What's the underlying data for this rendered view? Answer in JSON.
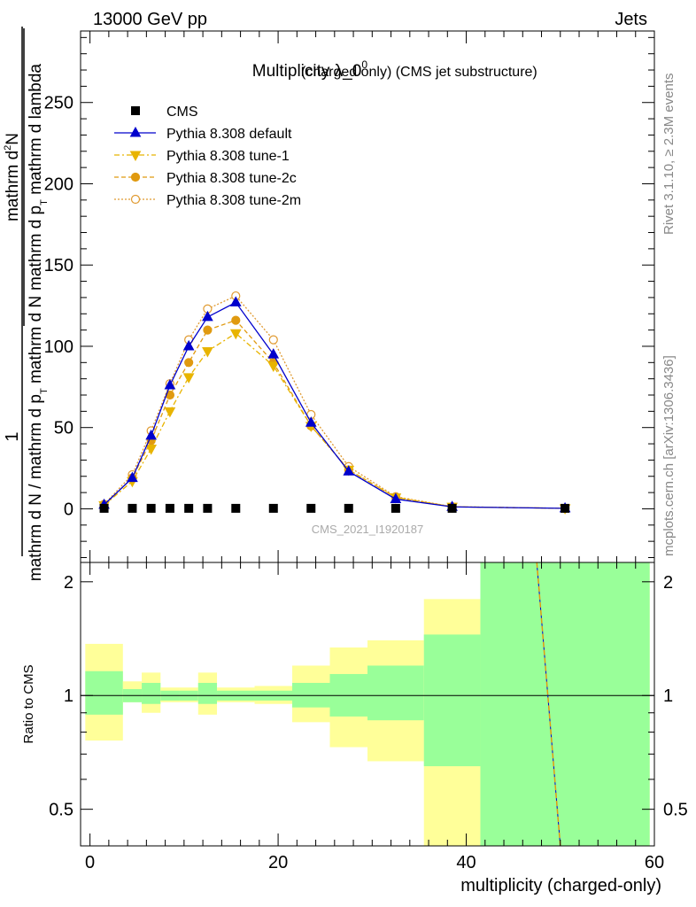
{
  "header": {
    "left": "13000 GeV pp",
    "right": "Jets"
  },
  "side_labels": {
    "rivet": "Rivet 3.1.10, ≥ 2.3M events",
    "mcplots": "mcplots.cern.ch [arXiv:1306.3436]"
  },
  "colors": {
    "cms": "#000000",
    "default": "#0000cc",
    "tune1": "#e8b400",
    "tune2c": "#e09a10",
    "tune2m": "#e09a30",
    "band_inner": "#99ff99",
    "band_outer": "#ffff99"
  },
  "chart_data": [
    {
      "type": "line",
      "title_main": "Multiplicity λ_0",
      "title_sup": "0",
      "title_rest": " (charged only) (CMS jet substructure)",
      "ylabel_prefix": "1",
      "ylabel_frac_num_a": "mathrm d",
      "ylabel_frac_num_sup": "2",
      "ylabel_frac_num_b": "N",
      "ylabel_frac_den": "mathrm d p",
      "ylabel_frac_den_sub": "T",
      "ylabel_frac_den_b": " mathrm d lambda",
      "ylabel_outer_den": "mathrm d N / mathrm d p",
      "ylabel_outer_den_sub": "T",
      "ylabel_outer_den_b": " mathrm d N",
      "watermark": "CMS_2021_I1920187",
      "ylim": [
        -33,
        294
      ],
      "yticks": [
        0,
        50,
        100,
        150,
        200,
        250
      ],
      "yticks_labels": [
        "0",
        "50",
        "100",
        "150",
        "200",
        "250"
      ],
      "legend_position": "top-left",
      "series": [
        {
          "name": "CMS",
          "x": [
            1.5,
            4.5,
            6.5,
            8.5,
            10.5,
            12.5,
            15.5,
            19.5,
            23.5,
            27.5,
            32.5,
            38.5,
            50.5
          ],
          "values": [
            0.3,
            0.3,
            0.3,
            0.3,
            0.3,
            0.3,
            0.3,
            0.3,
            0.3,
            0.3,
            0.3,
            0.3,
            0.3
          ]
        },
        {
          "name": "Pythia 8.308 default",
          "x": [
            1.5,
            4.5,
            6.5,
            8.5,
            10.5,
            12.5,
            15.5,
            19.5,
            23.5,
            27.5,
            32.5,
            38.5,
            50.5
          ],
          "values": [
            2.5,
            19,
            45,
            76,
            100,
            118,
            127,
            95,
            53,
            23,
            6,
            1.2,
            0.3
          ]
        },
        {
          "name": "Pythia 8.308 tune-1",
          "x": [
            1.5,
            4.5,
            6.5,
            8.5,
            10.5,
            12.5,
            15.5,
            19.5,
            23.5,
            27.5,
            32.5,
            38.5,
            50.5
          ],
          "values": [
            2.2,
            17,
            37,
            60,
            81,
            97,
            108,
            88,
            51,
            24,
            7,
            1.3,
            0.3
          ]
        },
        {
          "name": "Pythia 8.308 tune-2c",
          "x": [
            1.5,
            4.5,
            6.5,
            8.5,
            10.5,
            12.5,
            15.5,
            19.5,
            23.5,
            27.5,
            32.5,
            38.5,
            50.5
          ],
          "values": [
            2.4,
            19,
            42,
            70,
            90,
            110,
            116,
            90,
            51,
            24,
            7,
            1.2,
            0.3
          ]
        },
        {
          "name": "Pythia 8.308 tune-2m",
          "x": [
            1.5,
            4.5,
            6.5,
            8.5,
            10.5,
            12.5,
            15.5,
            19.5,
            23.5,
            27.5,
            32.5,
            38.5,
            50.5
          ],
          "values": [
            2.8,
            21,
            48,
            77,
            104,
            123,
            131,
            104,
            58,
            26,
            7.5,
            1.3,
            0.3
          ]
        }
      ]
    },
    {
      "type": "area",
      "ylabel": "Ratio to CMS",
      "xlabel": "multiplicity (charged-only)",
      "xlim": [
        -1,
        60
      ],
      "ylim": [
        0.4,
        2.25
      ],
      "xticks": [
        0,
        20,
        40,
        60
      ],
      "xticks_labels": [
        "0",
        "20",
        "40",
        "60"
      ],
      "yticks": [
        0.5,
        1,
        2
      ],
      "yticks_labels": [
        "0.5",
        "1",
        "2"
      ],
      "bins": [
        {
          "lo": -0.5,
          "hi": 3.5,
          "inner_lo": 0.89,
          "inner_hi": 1.16,
          "outer_lo": 0.76,
          "outer_hi": 1.37
        },
        {
          "lo": 3.5,
          "hi": 5.5,
          "inner_lo": 0.96,
          "inner_hi": 1.04,
          "outer_lo": 0.96,
          "outer_hi": 1.09
        },
        {
          "lo": 5.5,
          "hi": 7.5,
          "inner_lo": 0.95,
          "inner_hi": 1.08,
          "outer_lo": 0.9,
          "outer_hi": 1.15
        },
        {
          "lo": 7.5,
          "hi": 9.5,
          "inner_lo": 0.97,
          "inner_hi": 1.03,
          "outer_lo": 0.96,
          "outer_hi": 1.05
        },
        {
          "lo": 9.5,
          "hi": 11.5,
          "inner_lo": 0.97,
          "inner_hi": 1.03,
          "outer_lo": 0.96,
          "outer_hi": 1.05
        },
        {
          "lo": 11.5,
          "hi": 13.5,
          "inner_lo": 0.95,
          "inner_hi": 1.08,
          "outer_lo": 0.89,
          "outer_hi": 1.15
        },
        {
          "lo": 13.5,
          "hi": 17.5,
          "inner_lo": 0.97,
          "inner_hi": 1.03,
          "outer_lo": 0.96,
          "outer_hi": 1.05
        },
        {
          "lo": 17.5,
          "hi": 21.5,
          "inner_lo": 0.97,
          "inner_hi": 1.03,
          "outer_lo": 0.95,
          "outer_hi": 1.06
        },
        {
          "lo": 21.5,
          "hi": 25.5,
          "inner_lo": 0.93,
          "inner_hi": 1.08,
          "outer_lo": 0.85,
          "outer_hi": 1.2
        },
        {
          "lo": 25.5,
          "hi": 29.5,
          "inner_lo": 0.88,
          "inner_hi": 1.14,
          "outer_lo": 0.73,
          "outer_hi": 1.34
        },
        {
          "lo": 29.5,
          "hi": 35.5,
          "inner_lo": 0.86,
          "inner_hi": 1.2,
          "outer_lo": 0.67,
          "outer_hi": 1.4
        },
        {
          "lo": 35.5,
          "hi": 41.5,
          "inner_lo": 0.65,
          "inner_hi": 1.45,
          "outer_lo": 0.4,
          "outer_hi": 1.8
        },
        {
          "lo": 41.5,
          "hi": 59.5,
          "inner_lo": 0.4,
          "inner_hi": 2.25,
          "outer_lo": 0.4,
          "outer_hi": 2.25
        }
      ],
      "series": [
        {
          "name": "Pythia 8.308 default",
          "x": [
            47.5,
            50.0
          ],
          "values": [
            2.25,
            0.4
          ]
        }
      ]
    }
  ]
}
